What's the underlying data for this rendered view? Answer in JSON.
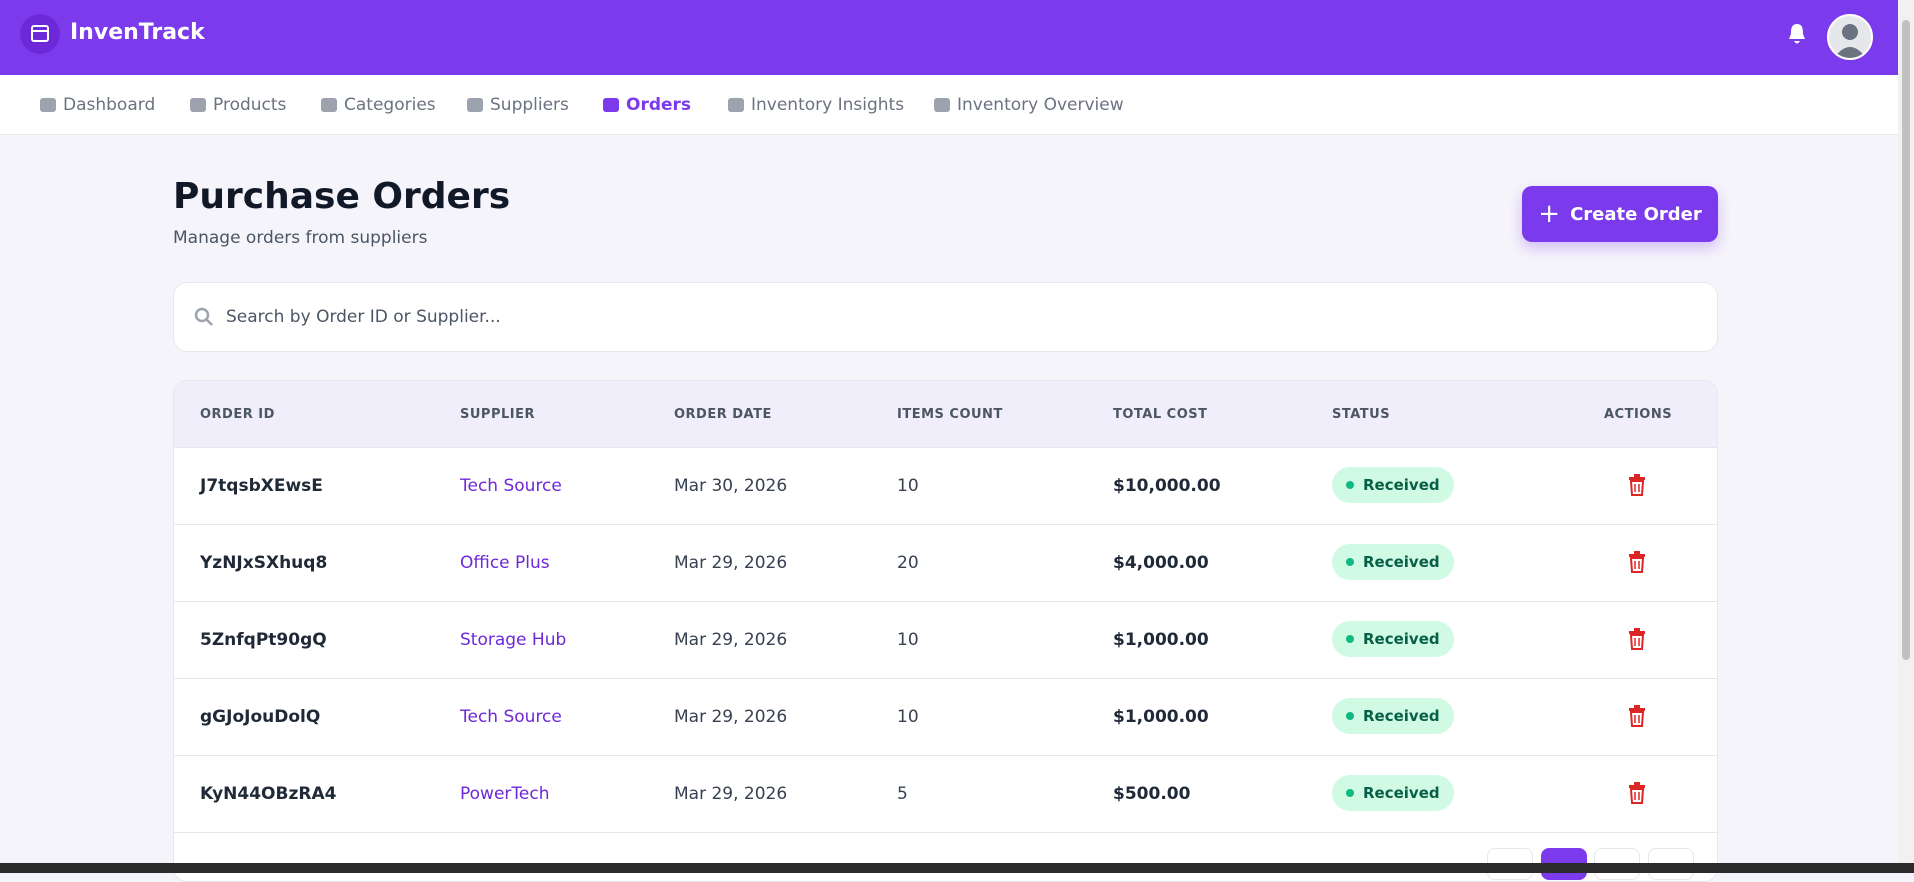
{
  "header": {
    "brand": "InvenTrack"
  },
  "nav": [
    "Dashboard",
    "Products",
    "Categories",
    "Suppliers",
    "Orders",
    "Inventory Insights",
    "Inventory Overview"
  ],
  "page": {
    "title": "Purchase Orders",
    "subtitle": "Manage orders from suppliers",
    "button": "Create Order",
    "search_placeholder": "Search by Order ID or Supplier..."
  },
  "table": {
    "columns": [
      "ORDER ID",
      "SUPPLIER",
      "ORDER DATE",
      "ITEMS COUNT",
      "TOTAL COST",
      "STATUS",
      "ACTIONS"
    ],
    "rows": [
      [
        "J7tqsbXEwsE",
        "Tech Source",
        "Mar 30, 2026",
        "10",
        "$10,000.00",
        "Received"
      ],
      [
        "YzNJxSXhuq8",
        "Office Plus",
        "Mar 29, 2026",
        "20",
        "$4,000.00",
        "Received"
      ],
      [
        "5ZnfqPt90gQ",
        "Storage Hub",
        "Mar 29, 2026",
        "10",
        "$1,000.00",
        "Received"
      ],
      [
        "gGJoJouDolQ",
        "Tech Source",
        "Mar 29, 2026",
        "10",
        "$1,000.00",
        "Received"
      ],
      [
        "KyN44OBzRA4",
        "PowerTech",
        "Mar 29, 2026",
        "5",
        "$500.00",
        "Received"
      ]
    ]
  }
}
